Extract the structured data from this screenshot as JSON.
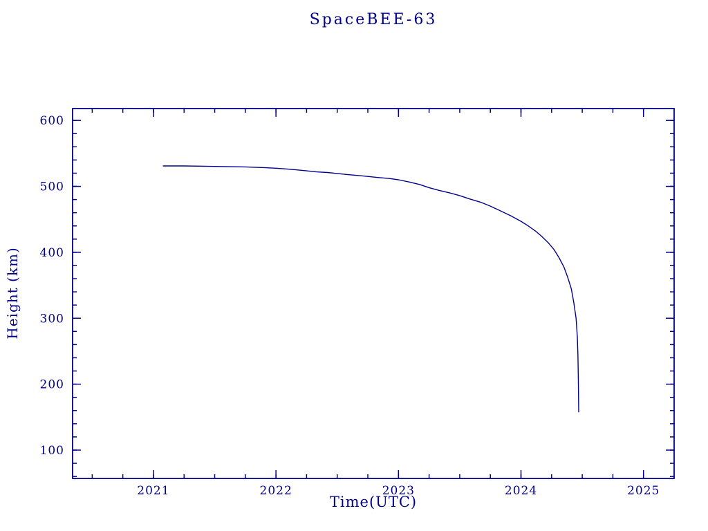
{
  "page": {
    "background": "#ffffff",
    "accent_color": "#00008b"
  },
  "chart_data": {
    "type": "line",
    "title": "SpaceBEE-63",
    "xlabel": "Time(UTC)",
    "ylabel": "Height (km)",
    "xlim": [
      2020.34,
      2025.25
    ],
    "ylim": [
      57,
      618
    ],
    "xticks": [
      2021,
      2022,
      2023,
      2024,
      2025
    ],
    "yticks": [
      100,
      200,
      300,
      400,
      500,
      600
    ],
    "x_minor_step": 0.25,
    "y_minor_step": 20,
    "grid": false,
    "legend": "none",
    "line_color": "#00008b",
    "axis_color": "#00008b",
    "series": [
      {
        "name": "height",
        "points": [
          [
            2021.08,
            531
          ],
          [
            2021.25,
            531
          ],
          [
            2021.42,
            530.5
          ],
          [
            2021.58,
            530
          ],
          [
            2021.75,
            529.5
          ],
          [
            2021.9,
            528.5
          ],
          [
            2022.0,
            527.5
          ],
          [
            2022.08,
            526.5
          ],
          [
            2022.17,
            525
          ],
          [
            2022.25,
            523.5
          ],
          [
            2022.33,
            522
          ],
          [
            2022.42,
            521
          ],
          [
            2022.5,
            519.5
          ],
          [
            2022.58,
            518
          ],
          [
            2022.67,
            516.5
          ],
          [
            2022.75,
            515
          ],
          [
            2022.83,
            513.5
          ],
          [
            2022.92,
            512
          ],
          [
            2023.0,
            510
          ],
          [
            2023.08,
            507
          ],
          [
            2023.17,
            503
          ],
          [
            2023.25,
            498
          ],
          [
            2023.33,
            494
          ],
          [
            2023.42,
            490
          ],
          [
            2023.5,
            486
          ],
          [
            2023.58,
            481
          ],
          [
            2023.67,
            476
          ],
          [
            2023.75,
            470
          ],
          [
            2023.83,
            463
          ],
          [
            2023.92,
            455
          ],
          [
            2024.0,
            447
          ],
          [
            2024.06,
            440
          ],
          [
            2024.12,
            432
          ],
          [
            2024.17,
            424
          ],
          [
            2024.22,
            415
          ],
          [
            2024.27,
            404
          ],
          [
            2024.31,
            392
          ],
          [
            2024.35,
            378
          ],
          [
            2024.38,
            363
          ],
          [
            2024.41,
            345
          ],
          [
            2024.43,
            325
          ],
          [
            2024.45,
            300
          ],
          [
            2024.46,
            272
          ],
          [
            2024.465,
            243
          ],
          [
            2024.468,
            210
          ],
          [
            2024.47,
            180
          ],
          [
            2024.471,
            158
          ]
        ]
      }
    ]
  }
}
